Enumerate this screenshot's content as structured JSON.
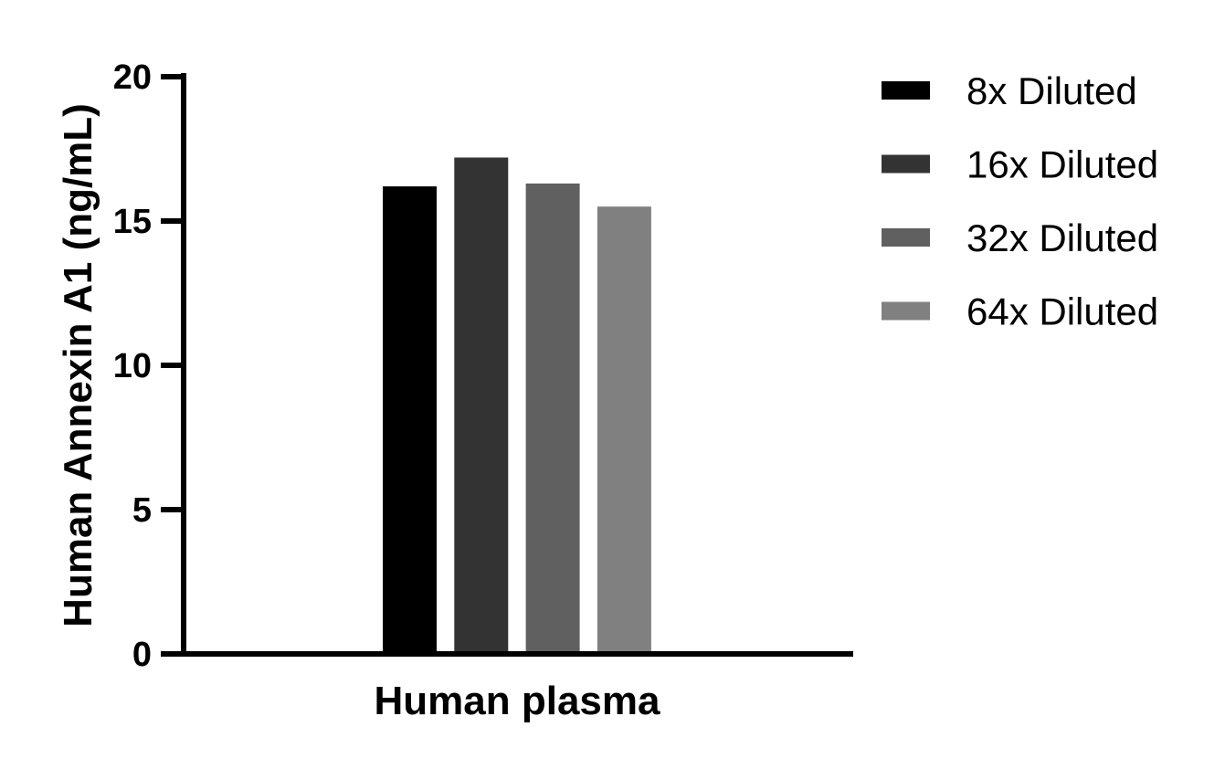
{
  "chart_data": {
    "type": "bar",
    "title": "",
    "xlabel": "Human plasma",
    "ylabel": "Human Annexin A1 (ng/mL)",
    "ylim": [
      0,
      20
    ],
    "yticks": [
      0,
      5,
      10,
      15,
      20
    ],
    "ytick_labels": [
      "0",
      "5",
      "10",
      "15",
      "20"
    ],
    "categories": [
      "Human plasma"
    ],
    "series": [
      {
        "name": "8x Diluted",
        "values": [
          16.2
        ],
        "color": "#000000"
      },
      {
        "name": "16x Diluted",
        "values": [
          17.2
        ],
        "color": "#333333"
      },
      {
        "name": "32x Diluted",
        "values": [
          16.3
        ],
        "color": "#606060"
      },
      {
        "name": "64x Diluted",
        "values": [
          15.5
        ],
        "color": "#808080"
      }
    ],
    "legend_position": "right",
    "grid": false
  }
}
